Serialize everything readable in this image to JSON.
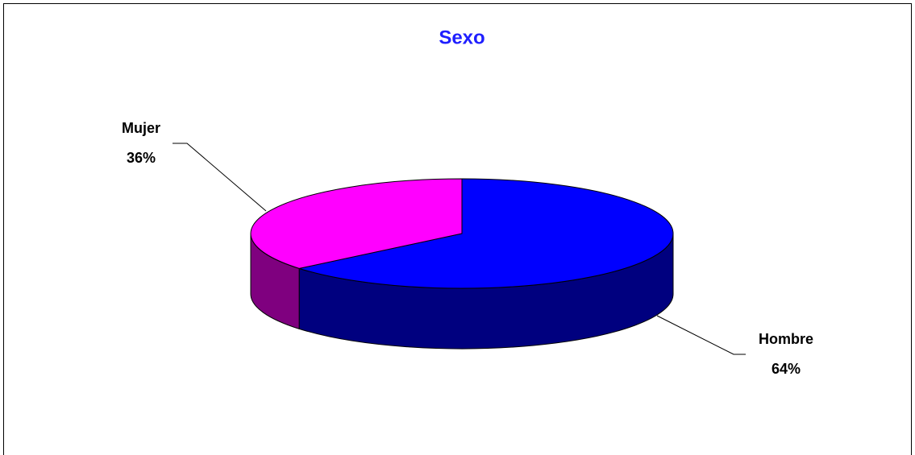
{
  "chart_data": {
    "type": "pie3d",
    "title": "Sexo",
    "categories": [
      "Hombre",
      "Mujer"
    ],
    "values": [
      64,
      36
    ],
    "value_labels": [
      "64%",
      "36%"
    ],
    "colors": [
      "#0000ff",
      "#ff00ff"
    ]
  }
}
